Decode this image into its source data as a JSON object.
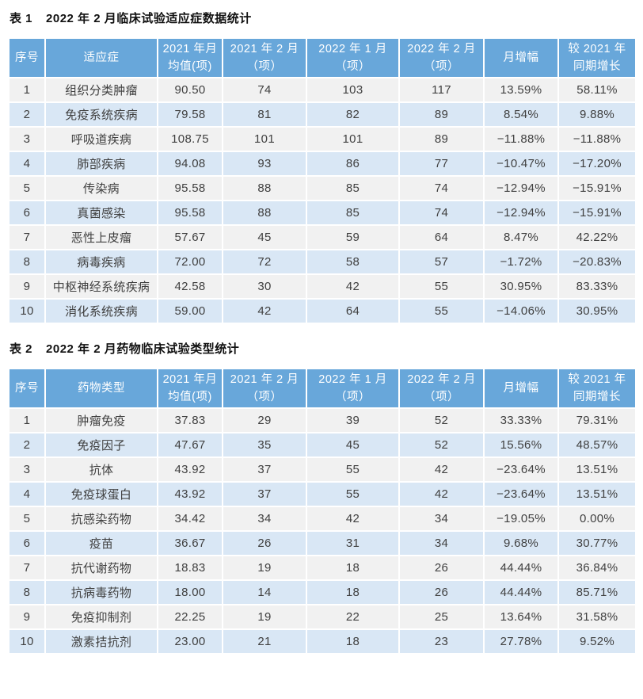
{
  "colors": {
    "header_bg": "#68a7da",
    "row_odd_bg": "#f1f1f1",
    "row_even_bg": "#d9e7f5",
    "header_text": "#ffffff",
    "body_text": "#404040",
    "title_text": "#111111"
  },
  "tables": [
    {
      "label": "表 1",
      "title": "2022 年 2 月临床试验适应症数据统计",
      "columns": [
        "序号",
        "适应症",
        "2021 年月\n均值(项)",
        "2021 年 2 月\n（项）",
        "2022 年 1 月\n（项）",
        "2022 年 2 月\n（项）",
        "月增幅",
        "较 2021 年\n同期增长"
      ],
      "rows": [
        [
          "1",
          "组织分类肿瘤",
          "90.50",
          "74",
          "103",
          "117",
          "13.59%",
          "58.11%"
        ],
        [
          "2",
          "免疫系统疾病",
          "79.58",
          "81",
          "82",
          "89",
          "8.54%",
          "9.88%"
        ],
        [
          "3",
          "呼吸道疾病",
          "108.75",
          "101",
          "101",
          "89",
          "−11.88%",
          "−11.88%"
        ],
        [
          "4",
          "肺部疾病",
          "94.08",
          "93",
          "86",
          "77",
          "−10.47%",
          "−17.20%"
        ],
        [
          "5",
          "传染病",
          "95.58",
          "88",
          "85",
          "74",
          "−12.94%",
          "−15.91%"
        ],
        [
          "6",
          "真菌感染",
          "95.58",
          "88",
          "85",
          "74",
          "−12.94%",
          "−15.91%"
        ],
        [
          "7",
          "恶性上皮瘤",
          "57.67",
          "45",
          "59",
          "64",
          "8.47%",
          "42.22%"
        ],
        [
          "8",
          "病毒疾病",
          "72.00",
          "72",
          "58",
          "57",
          "−1.72%",
          "−20.83%"
        ],
        [
          "9",
          "中枢神经系统疾病",
          "42.58",
          "30",
          "42",
          "55",
          "30.95%",
          "83.33%"
        ],
        [
          "10",
          "消化系统疾病",
          "59.00",
          "42",
          "64",
          "55",
          "−14.06%",
          "30.95%"
        ]
      ]
    },
    {
      "label": "表 2",
      "title": "2022 年 2 月药物临床试验类型统计",
      "columns": [
        "序号",
        "药物类型",
        "2021 年月\n均值(项)",
        "2021 年 2 月\n（项）",
        "2022 年 1 月\n（项）",
        "2022 年 2 月\n（项）",
        "月增幅",
        "较 2021 年\n同期增长"
      ],
      "rows": [
        [
          "1",
          "肿瘤免疫",
          "37.83",
          "29",
          "39",
          "52",
          "33.33%",
          "79.31%"
        ],
        [
          "2",
          "免疫因子",
          "47.67",
          "35",
          "45",
          "52",
          "15.56%",
          "48.57%"
        ],
        [
          "3",
          "抗体",
          "43.92",
          "37",
          "55",
          "42",
          "−23.64%",
          "13.51%"
        ],
        [
          "4",
          "免疫球蛋白",
          "43.92",
          "37",
          "55",
          "42",
          "−23.64%",
          "13.51%"
        ],
        [
          "5",
          "抗感染药物",
          "34.42",
          "34",
          "42",
          "34",
          "−19.05%",
          "0.00%"
        ],
        [
          "6",
          "疫苗",
          "36.67",
          "26",
          "31",
          "34",
          "9.68%",
          "30.77%"
        ],
        [
          "7",
          "抗代谢药物",
          "18.83",
          "19",
          "18",
          "26",
          "44.44%",
          "36.84%"
        ],
        [
          "8",
          "抗病毒药物",
          "18.00",
          "14",
          "18",
          "26",
          "44.44%",
          "85.71%"
        ],
        [
          "9",
          "免疫抑制剂",
          "22.25",
          "19",
          "22",
          "25",
          "13.64%",
          "31.58%"
        ],
        [
          "10",
          "激素拮抗剂",
          "23.00",
          "21",
          "18",
          "23",
          "27.78%",
          "9.52%"
        ]
      ]
    }
  ]
}
